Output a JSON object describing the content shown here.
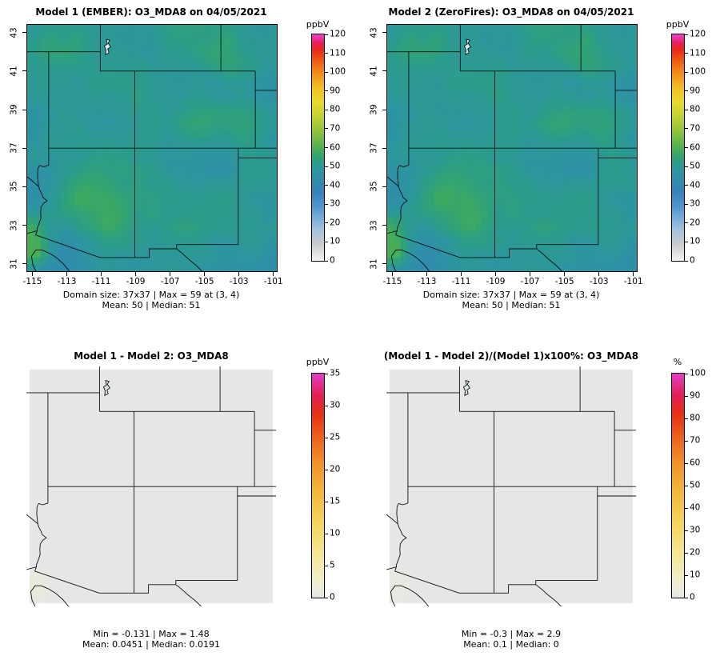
{
  "figure_bg": "#ffffff",
  "panels": [
    {
      "kind": "conc",
      "title": "Model 1 (EMBER): O3_MDA8 on 04/05/2021",
      "captions": [
        "Domain size: 37x37 | Max = 59 at (3, 4)",
        "Mean: 50 |  Median: 51"
      ],
      "colorbar": {
        "label": "ppbV",
        "min": 0,
        "max": 120,
        "ticks": [
          0,
          10,
          20,
          30,
          40,
          50,
          60,
          70,
          80,
          90,
          100,
          110,
          120
        ]
      }
    },
    {
      "kind": "conc",
      "title": "Model 2 (ZeroFires): O3_MDA8 on 04/05/2021",
      "captions": [
        "Domain size: 37x37 | Max = 59 at (3, 4)",
        "Mean: 50 |  Median: 51"
      ],
      "colorbar": {
        "label": "ppbV",
        "min": 0,
        "max": 120,
        "ticks": [
          0,
          10,
          20,
          30,
          40,
          50,
          60,
          70,
          80,
          90,
          100,
          110,
          120
        ]
      }
    },
    {
      "kind": "diff",
      "title": "Model 1 - Model 2: O3_MDA8",
      "captions": [
        "Min = -0.131 | Max = 1.48",
        "Mean: 0.0451 |  Median: 0.0191"
      ],
      "colorbar": {
        "label": "ppbV",
        "min": 0,
        "max": 35,
        "ticks": [
          0,
          5,
          10,
          15,
          20,
          25,
          30,
          35
        ]
      }
    },
    {
      "kind": "diff",
      "title": "(Model 1 - Model 2)/(Model 1)x100%: O3_MDA8",
      "captions": [
        "Min = -0.3 | Max = 2.9",
        "Mean: 0.1 |  Median: 0"
      ],
      "colorbar": {
        "label": "%",
        "min": 0,
        "max": 100,
        "ticks": [
          0,
          10,
          20,
          30,
          40,
          50,
          60,
          70,
          80,
          90,
          100
        ]
      }
    }
  ],
  "axes": {
    "x_ticks": [
      -115,
      -113,
      -111,
      -109,
      -107,
      -105,
      -103,
      -101
    ],
    "y_ticks": [
      31,
      33,
      35,
      37,
      39,
      41,
      43
    ]
  },
  "colormaps": {
    "conc": [
      [
        0.0,
        "#f5f5f5"
      ],
      [
        0.04,
        "#dcdcdc"
      ],
      [
        0.08,
        "#c3c9ce"
      ],
      [
        0.13,
        "#a8c4dc"
      ],
      [
        0.18,
        "#7fb0da"
      ],
      [
        0.24,
        "#5095cd"
      ],
      [
        0.3,
        "#3981bd"
      ],
      [
        0.35,
        "#2f8cab"
      ],
      [
        0.4,
        "#2d95a0"
      ],
      [
        0.43,
        "#2b9c8c"
      ],
      [
        0.46,
        "#32a472"
      ],
      [
        0.49,
        "#48ad58"
      ],
      [
        0.53,
        "#6cb848"
      ],
      [
        0.58,
        "#97c53c"
      ],
      [
        0.64,
        "#c2d233"
      ],
      [
        0.7,
        "#e7da2b"
      ],
      [
        0.76,
        "#f2c226"
      ],
      [
        0.82,
        "#f1951c"
      ],
      [
        0.88,
        "#ee5f12"
      ],
      [
        0.93,
        "#e92a17"
      ],
      [
        0.96,
        "#e61f55"
      ],
      [
        1.0,
        "#ed3fd0"
      ]
    ],
    "diff": [
      [
        0.0,
        "#e6e6e6"
      ],
      [
        0.04,
        "#ecebdb"
      ],
      [
        0.1,
        "#f2ecc0"
      ],
      [
        0.2,
        "#f4e692"
      ],
      [
        0.33,
        "#f4d55e"
      ],
      [
        0.47,
        "#f3b83c"
      ],
      [
        0.6,
        "#f0922a"
      ],
      [
        0.72,
        "#ec5f1c"
      ],
      [
        0.82,
        "#e63014"
      ],
      [
        0.9,
        "#e11f52"
      ],
      [
        1.0,
        "#e23ec8"
      ]
    ]
  },
  "render_hints": {
    "conc_field": {
      "base": 51,
      "noise_amp1": 7,
      "noise_amp2": 2.5,
      "clamp": [
        40,
        59
      ],
      "hotspots": [
        {
          "lon": -115.05,
          "lat": 31.55,
          "s": 0.6,
          "a": 17
        },
        {
          "lon": -115.3,
          "lat": 32.9,
          "s": 0.5,
          "a": 6
        },
        {
          "lon": -112.1,
          "lat": 34.3,
          "s": 0.95,
          "a": 5.5
        },
        {
          "lon": -110.4,
          "lat": 33.4,
          "s": 0.7,
          "a": 3.5
        },
        {
          "lon": -105.4,
          "lat": 38.4,
          "s": 1.0,
          "a": 4
        },
        {
          "lon": -102.9,
          "lat": 41.4,
          "s": 0.85,
          "a": 4
        },
        {
          "lon": -104.2,
          "lat": 35.9,
          "s": 1.2,
          "a": -3.5
        },
        {
          "lon": -101.5,
          "lat": 33.2,
          "s": 1.2,
          "a": -4
        },
        {
          "lon": -114.7,
          "lat": 35.4,
          "s": 0.9,
          "a": -3.5
        },
        {
          "lon": -112.9,
          "lat": 31.2,
          "s": 0.8,
          "a": -4
        }
      ]
    },
    "diff_spots": [
      {
        "lon": -115.0,
        "lat": 31.6,
        "s": 0.55,
        "a": 1.4
      },
      {
        "lon": -115.0,
        "lat": 31.6,
        "s": 0.55,
        "a": 2.8
      }
    ]
  },
  "chart_data": [
    {
      "type": "heatmap",
      "panel": "top-left",
      "title": "Model 1 (EMBER): O3_MDA8 on 04/05/2021",
      "variable": "O3_MDA8",
      "date": "04/05/2021",
      "units": "ppbV",
      "x_ticks": [
        -115,
        -113,
        -111,
        -109,
        -107,
        -105,
        -103,
        -101
      ],
      "y_ticks": [
        31,
        33,
        35,
        37,
        39,
        41,
        43
      ],
      "xlim": [
        -115.3,
        -100.8
      ],
      "ylim": [
        30.6,
        43.4
      ],
      "domain_size": "37x37",
      "max": 59,
      "max_at": "(3, 4)",
      "mean": 50,
      "median": 51,
      "colorbar_range": [
        0,
        120
      ],
      "colorbar_ticks": [
        0,
        10,
        20,
        30,
        40,
        50,
        60,
        70,
        80,
        90,
        100,
        110,
        120
      ],
      "legend_position": "right",
      "grid": false
    },
    {
      "type": "heatmap",
      "panel": "top-right",
      "title": "Model 2 (ZeroFires): O3_MDA8 on 04/05/2021",
      "variable": "O3_MDA8",
      "date": "04/05/2021",
      "units": "ppbV",
      "x_ticks": [
        -115,
        -113,
        -111,
        -109,
        -107,
        -105,
        -103,
        -101
      ],
      "y_ticks": [
        31,
        33,
        35,
        37,
        39,
        41,
        43
      ],
      "xlim": [
        -115.3,
        -100.8
      ],
      "ylim": [
        30.6,
        43.4
      ],
      "domain_size": "37x37",
      "max": 59,
      "max_at": "(3, 4)",
      "mean": 50,
      "median": 51,
      "colorbar_range": [
        0,
        120
      ],
      "colorbar_ticks": [
        0,
        10,
        20,
        30,
        40,
        50,
        60,
        70,
        80,
        90,
        100,
        110,
        120
      ],
      "legend_position": "right",
      "grid": false
    },
    {
      "type": "heatmap",
      "panel": "bottom-left",
      "title": "Model 1 - Model 2: O3_MDA8",
      "variable": "O3_MDA8",
      "units": "ppbV",
      "min": -0.131,
      "max": 1.48,
      "mean": 0.0451,
      "median": 0.0191,
      "colorbar_range": [
        0,
        35
      ],
      "colorbar_ticks": [
        0,
        5,
        10,
        15,
        20,
        25,
        30,
        35
      ],
      "legend_position": "right",
      "grid": false
    },
    {
      "type": "heatmap",
      "panel": "bottom-right",
      "title": "(Model 1 - Model 2)/(Model 1)x100%: O3_MDA8",
      "variable": "O3_MDA8",
      "units": "%",
      "min": -0.3,
      "max": 2.9,
      "mean": 0.1,
      "median": 0,
      "colorbar_range": [
        0,
        100
      ],
      "colorbar_ticks": [
        0,
        10,
        20,
        30,
        40,
        50,
        60,
        70,
        80,
        90,
        100
      ],
      "legend_position": "right",
      "grid": false
    }
  ]
}
